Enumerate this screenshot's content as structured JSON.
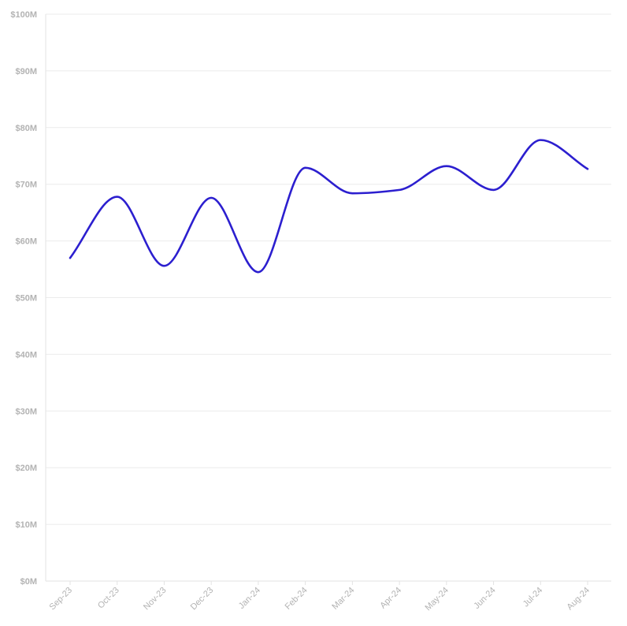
{
  "chart_data": {
    "type": "line",
    "title": "",
    "xlabel": "",
    "ylabel": "",
    "categories": [
      "Sep-23",
      "Oct-23",
      "Nov-23",
      "Dec-23",
      "Jan-24",
      "Feb-24",
      "Mar-24",
      "Apr-24",
      "May-24",
      "Jun-24",
      "Jul-24",
      "Aug-24"
    ],
    "series": [
      {
        "values": [
          57.0,
          67.8,
          55.6,
          67.6,
          54.5,
          72.9,
          68.4,
          69.0,
          73.2,
          69.0,
          77.8,
          72.7
        ]
      }
    ],
    "ylim": [
      0,
      100
    ],
    "y_ticks": [
      0,
      10,
      20,
      30,
      40,
      50,
      60,
      70,
      80,
      90,
      100
    ],
    "y_tick_labels": [
      "$0M",
      "$10M",
      "$20M",
      "$30M",
      "$40M",
      "$50M",
      "$60M",
      "$70M",
      "$80M",
      "$90M",
      "$100M"
    ],
    "grid": true,
    "legend": "none",
    "line_color": "#2c1fcf"
  }
}
